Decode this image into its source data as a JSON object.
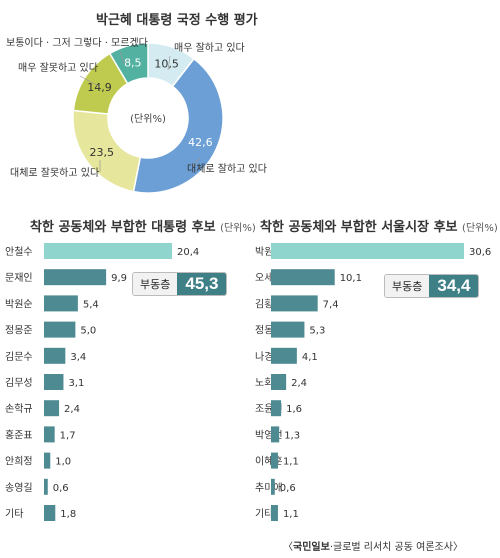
{
  "chart_data": [
    {
      "type": "pie",
      "title": "박근혜 대통령 국정 수행 평가",
      "center_label": "(단위%)",
      "slices": [
        {
          "label": "매우 잘하고 있다",
          "value": 10.5,
          "display": "10,5",
          "color": "#d4ecf1"
        },
        {
          "label": "대체로 잘하고 있다",
          "value": 42.6,
          "display": "42,6",
          "color": "#6b9fd6"
        },
        {
          "label": "대체로 잘못하고 있다",
          "value": 23.5,
          "display": "23,5",
          "color": "#e6e69c"
        },
        {
          "label": "매우 잘못하고 있다",
          "value": 14.9,
          "display": "14,9",
          "color": "#bfcb4f"
        },
        {
          "label": "보통이다 · 그저 그렇다 · 모르겠다",
          "value": 8.5,
          "display": "8,5",
          "color": "#52b1a1"
        }
      ]
    },
    {
      "type": "bar",
      "title": "착한 공동체와 부합한 대통령 후보",
      "unit": "(단위%)",
      "categories": [
        "안철수",
        "문재인",
        "박원순",
        "정몽준",
        "김문수",
        "김무성",
        "손학규",
        "홍준표",
        "안희정",
        "송영길",
        "기타"
      ],
      "values": [
        20.4,
        9.9,
        5.4,
        5.0,
        3.4,
        3.1,
        2.4,
        1.7,
        1.0,
        0.6,
        1.8
      ],
      "value_labels": [
        "20,4",
        "9,9",
        "5,4",
        "5,0",
        "3,4",
        "3,1",
        "2,4",
        "1,7",
        "1,0",
        "0,6",
        "1,8"
      ],
      "xlim": [
        0,
        20.4
      ],
      "badge": {
        "label": "부동층",
        "value": "45,3"
      }
    },
    {
      "type": "bar",
      "title": "착한 공동체와 부합한 서울시장 후보",
      "unit": "(단위%)",
      "categories": [
        "박원순",
        "오세훈",
        "김황식",
        "정몽준",
        "나경원",
        "노회찬",
        "조윤선",
        "박영선",
        "이혜훈",
        "추미애",
        "기타"
      ],
      "values": [
        30.6,
        10.1,
        7.4,
        5.3,
        4.1,
        2.4,
        1.6,
        1.3,
        1.1,
        0.6,
        1.1
      ],
      "value_labels": [
        "30,6",
        "10,1",
        "7,4",
        "5,3",
        "4,1",
        "2,4",
        "1,6",
        "1,3",
        "1,1",
        "0,6",
        "1,1"
      ],
      "xlim": [
        0,
        30.6
      ],
      "badge": {
        "label": "부동층",
        "value": "34,4"
      }
    }
  ],
  "colors": {
    "highlight_bar": "#8fd4cd",
    "bar": "#4e8a91"
  },
  "source": {
    "brand": "국민일보",
    "text": "·글로벌 리서치 공동 여론조사"
  }
}
